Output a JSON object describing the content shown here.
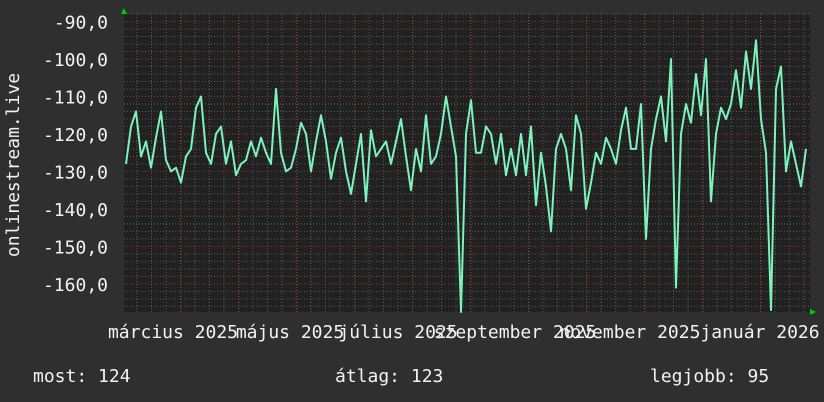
{
  "chart_data": {
    "type": "line",
    "ylabel": "onlinestream.live",
    "ylim": [
      -167.5,
      -88
    ],
    "yticks": [
      -90,
      -100,
      -110,
      -120,
      -130,
      -140,
      -150,
      -160
    ],
    "ytick_labels": [
      "-90,0",
      "-100,0",
      "-110,0",
      "-120,0",
      "-130,0",
      "-140,0",
      "-150,0",
      "-160,0"
    ],
    "xtick_labels": [
      "március 2025",
      "május 2025",
      "július 2025",
      "szeptember 2025",
      "november 2025",
      "január 2026"
    ],
    "grid": true,
    "colors": {
      "line": "#7df2bb",
      "plot_bg": "#212121",
      "page_bg": "#2f2f2f",
      "major_grid": "#8a3a3a",
      "minor_grid": "#5a5a5a",
      "arrow": "#00cc00"
    },
    "series": [
      {
        "values": [
          -128,
          -118,
          -114,
          -126,
          -122,
          -129,
          -121,
          -114,
          -127,
          -130,
          -129,
          -133,
          -126,
          -124,
          -113,
          -110,
          -125,
          -128,
          -120,
          -118,
          -128,
          -122,
          -131,
          -128,
          -127,
          -122,
          -126,
          -121,
          -125,
          -128,
          -108,
          -125,
          -130,
          -129,
          -124,
          -117,
          -120,
          -130,
          -122,
          -115,
          -122,
          -132,
          -125,
          -121,
          -130,
          -136,
          -128,
          -120,
          -138,
          -119,
          -126,
          -124,
          -122,
          -128,
          -122,
          -116,
          -126,
          -135,
          -124,
          -130,
          -115,
          -128,
          -126,
          -120,
          -110,
          -118,
          -126,
          -168,
          -120,
          -111,
          -125,
          -125,
          -118,
          -120,
          -128,
          -120,
          -131,
          -124,
          -131,
          -120,
          -131,
          -118,
          -139,
          -125,
          -134,
          -146,
          -124,
          -120,
          -124,
          -135,
          -115,
          -120,
          -140,
          -133,
          -125,
          -128,
          -121,
          -124,
          -128,
          -119,
          -113,
          -124,
          -124,
          -112,
          -148,
          -124,
          -116,
          -110,
          -122,
          -100,
          -161,
          -120,
          -112,
          -117,
          -104,
          -115,
          -100,
          -138,
          -120,
          -113,
          -116,
          -112,
          -103,
          -113,
          -98,
          -108,
          -95,
          -116,
          -125,
          -167,
          -108,
          -102,
          -130,
          -122,
          -128,
          -134,
          -124
        ]
      }
    ]
  },
  "legend": {
    "current": "most: 124",
    "average": "átlag: 123",
    "best": "legjobb: 95"
  }
}
